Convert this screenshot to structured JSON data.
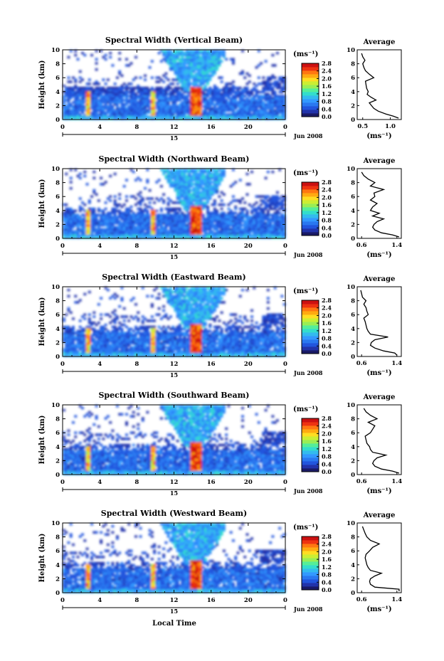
{
  "colors": {
    "colorbar": [
      "#1a1a66",
      "#2233aa",
      "#2255dd",
      "#2a78f0",
      "#3399ff",
      "#33bbee",
      "#33ddcc",
      "#55ee99",
      "#99ee55",
      "#ccee33",
      "#ffdd22",
      "#ffaa11",
      "#ff7711",
      "#ee3311",
      "#cc1111"
    ],
    "profile_line": "#000000"
  },
  "shared": {
    "x_tick_labels": [
      "0",
      "4",
      "8",
      "12",
      "16",
      "20",
      "0"
    ],
    "y_tick_labels": [
      "0",
      "2",
      "4",
      "6",
      "8",
      "10"
    ],
    "ylabel": "Height (km)",
    "day_label": "15",
    "month_label": "Jun 2008",
    "xlabel": "Local Time",
    "unit_label": "(ms⁻¹)",
    "colorbar_ticks": [
      "0.0",
      "0.4",
      "0.8",
      "1.2",
      "1.6",
      "2.0",
      "2.4",
      "2.8"
    ],
    "profile_title": "Average",
    "profile_unit": "(ms⁻¹)"
  },
  "chart_data": [
    {
      "type": "heatmap",
      "title": "Spectral Width (Vertical Beam)",
      "x_range": [
        0,
        24
      ],
      "y_range": [
        0,
        10
      ],
      "colorbar_range": [
        0.0,
        2.8
      ],
      "profile": {
        "title": "Average",
        "x_ticks": [
          "0.5",
          "1.0"
        ],
        "x_range": [
          0.4,
          1.2
        ],
        "height_km": [
          0.2,
          0.5,
          0.8,
          1.2,
          1.6,
          2.0,
          2.4,
          2.8,
          3.2,
          3.6,
          4.0,
          4.5,
          5.0,
          5.5,
          6.0,
          6.5,
          7.0,
          7.5,
          8.0,
          8.5,
          9.0,
          9.5
        ],
        "width": [
          1.15,
          1.05,
          0.92,
          0.78,
          0.7,
          0.66,
          0.62,
          0.74,
          0.65,
          0.58,
          0.6,
          0.57,
          0.56,
          0.55,
          0.7,
          0.62,
          0.55,
          0.52,
          0.5,
          0.54,
          0.5,
          0.48
        ]
      }
    },
    {
      "type": "heatmap",
      "title": "Spectral Width (Northward Beam)",
      "x_range": [
        0,
        24
      ],
      "y_range": [
        0,
        10
      ],
      "colorbar_range": [
        0.0,
        2.8
      ],
      "profile": {
        "title": "Average",
        "x_ticks": [
          "0.6",
          "1.4"
        ],
        "x_range": [
          0.5,
          1.5
        ],
        "height_km": [
          0.2,
          0.5,
          0.8,
          1.2,
          1.6,
          2.0,
          2.4,
          2.8,
          3.2,
          3.6,
          4.0,
          4.5,
          5.0,
          5.5,
          6.0,
          6.5,
          7.0,
          7.5,
          8.0,
          8.5,
          9.0,
          9.5
        ],
        "width": [
          1.45,
          1.3,
          1.05,
          0.9,
          0.85,
          0.88,
          0.95,
          1.1,
          0.85,
          1.0,
          0.8,
          0.85,
          0.95,
          0.8,
          0.9,
          0.88,
          1.1,
          0.8,
          0.9,
          0.75,
          0.65,
          0.6
        ]
      }
    },
    {
      "type": "heatmap",
      "title": "Spectral Width (Eastward Beam)",
      "x_range": [
        0,
        24
      ],
      "y_range": [
        0,
        10
      ],
      "colorbar_range": [
        0.0,
        2.8
      ],
      "profile": {
        "title": "Average",
        "x_ticks": [
          "0.6",
          "1.4"
        ],
        "x_range": [
          0.5,
          1.5
        ],
        "height_km": [
          0.2,
          0.5,
          0.8,
          1.2,
          1.6,
          2.0,
          2.4,
          2.8,
          3.2,
          3.6,
          4.0,
          4.5,
          5.0,
          5.5,
          6.0,
          6.5,
          7.0,
          7.5,
          8.0,
          8.5,
          9.0,
          9.5
        ],
        "width": [
          1.4,
          1.35,
          1.1,
          0.9,
          0.8,
          0.82,
          0.9,
          1.2,
          0.8,
          0.75,
          0.72,
          0.7,
          0.68,
          0.65,
          0.75,
          0.72,
          0.7,
          0.65,
          0.7,
          0.62,
          0.6,
          0.58
        ]
      }
    },
    {
      "type": "heatmap",
      "title": "Spectral Width (Southward Beam)",
      "x_range": [
        0,
        24
      ],
      "y_range": [
        0,
        10
      ],
      "colorbar_range": [
        0.0,
        2.8
      ],
      "profile": {
        "title": "Average",
        "x_ticks": [
          "0.6",
          "1.4"
        ],
        "x_range": [
          0.5,
          1.5
        ],
        "height_km": [
          0.2,
          0.5,
          0.8,
          1.2,
          1.6,
          2.0,
          2.4,
          2.8,
          3.2,
          3.6,
          4.0,
          4.5,
          5.0,
          5.5,
          6.0,
          6.5,
          7.0,
          7.5,
          8.0,
          8.5,
          9.0,
          9.5
        ],
        "width": [
          1.45,
          1.3,
          1.05,
          0.9,
          0.85,
          0.88,
          0.95,
          1.15,
          0.85,
          0.8,
          0.78,
          0.72,
          0.7,
          0.68,
          0.8,
          0.85,
          0.9,
          0.75,
          0.95,
          0.8,
          0.7,
          0.65
        ]
      }
    },
    {
      "type": "heatmap",
      "title": "Spectral Width (Westward Beam)",
      "x_range": [
        0,
        24
      ],
      "y_range": [
        0,
        10
      ],
      "colorbar_range": [
        0.0,
        2.8
      ],
      "profile": {
        "title": "Average",
        "x_ticks": [
          "0.6",
          "1.4"
        ],
        "x_range": [
          0.5,
          1.5
        ],
        "height_km": [
          0.2,
          0.5,
          0.8,
          1.0,
          1.2,
          1.6,
          2.0,
          2.4,
          2.8,
          3.2,
          3.6,
          4.0,
          4.5,
          5.0,
          5.5,
          6.0,
          6.5,
          7.0,
          7.5,
          8.0,
          8.5,
          9.0,
          9.5
        ],
        "width": [
          1.45,
          1.45,
          0.9,
          0.85,
          0.8,
          0.78,
          0.8,
          0.9,
          1.05,
          0.8,
          0.75,
          0.72,
          0.7,
          0.68,
          0.7,
          0.78,
          0.85,
          1.0,
          0.8,
          0.72,
          0.68,
          0.65,
          0.62
        ]
      }
    }
  ]
}
